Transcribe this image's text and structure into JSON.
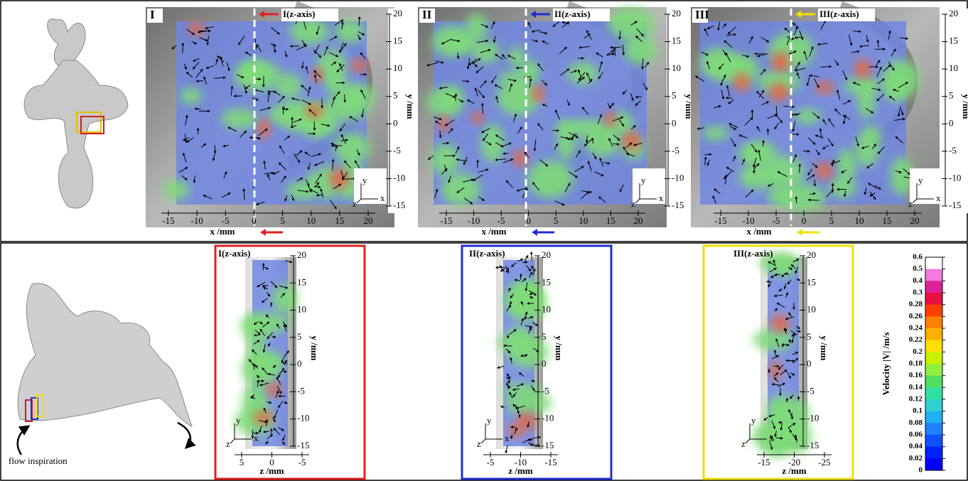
{
  "top_panels": [
    {
      "label": "I",
      "axis_label": "I(z-axis)",
      "x_label": "x /mm",
      "y_label": "y /mm",
      "xticks": [
        -15,
        -10,
        -5,
        0,
        5,
        10,
        15,
        20
      ],
      "yticks": [
        20,
        15,
        10,
        5,
        0,
        -5,
        -10,
        -15
      ]
    },
    {
      "label": "II",
      "axis_label": "II(z-axis)",
      "x_label": "x /mm",
      "y_label": "y /mm",
      "xticks": [
        -15,
        -10,
        -5,
        0,
        5,
        10,
        15,
        20
      ],
      "yticks": [
        20,
        15,
        10,
        5,
        0,
        -5,
        -10,
        -15
      ]
    },
    {
      "label": "III",
      "axis_label": "III(z-axis)",
      "x_label": "x /mm",
      "y_label": "y /mm",
      "xticks": [
        -15,
        -10,
        -5,
        0,
        5,
        10,
        15,
        20
      ],
      "yticks": [
        20,
        15,
        10,
        5,
        0,
        -5,
        -10,
        -15
      ]
    }
  ],
  "bottom_panels": [
    {
      "label": "I(z-axis)",
      "x_label": "z /mm",
      "y_label": "y /mm",
      "xticks": [
        5,
        0,
        -5
      ],
      "yticks": [
        20,
        15,
        10,
        5,
        0,
        -5,
        -10,
        -15
      ]
    },
    {
      "label": "II(z-axis)",
      "x_label": "z /mm",
      "y_label": "y /mm",
      "xticks": [
        -5,
        -10,
        -15
      ],
      "yticks": [
        20,
        15,
        10,
        5,
        0,
        -5,
        -10,
        -15
      ]
    },
    {
      "label": "III(z-axis)",
      "x_label": "z /mm",
      "y_label": "y /mm",
      "xticks": [
        -15,
        -20,
        -25
      ],
      "yticks": [
        20,
        15,
        10,
        5,
        0,
        -5,
        -10,
        -15
      ]
    }
  ],
  "colorbar": {
    "title": "Velocity |V| /m/s",
    "ticks": [
      0.6,
      0.5,
      0.4,
      0.3,
      0.28,
      0.26,
      0.24,
      0.22,
      0.2,
      0.18,
      0.16,
      0.14,
      0.12,
      0.1,
      0.08,
      0.06,
      0.04,
      0.02,
      0
    ]
  },
  "axes": {
    "x": "x",
    "y": "y",
    "z": "z"
  },
  "annotation": "flow inspiration"
}
